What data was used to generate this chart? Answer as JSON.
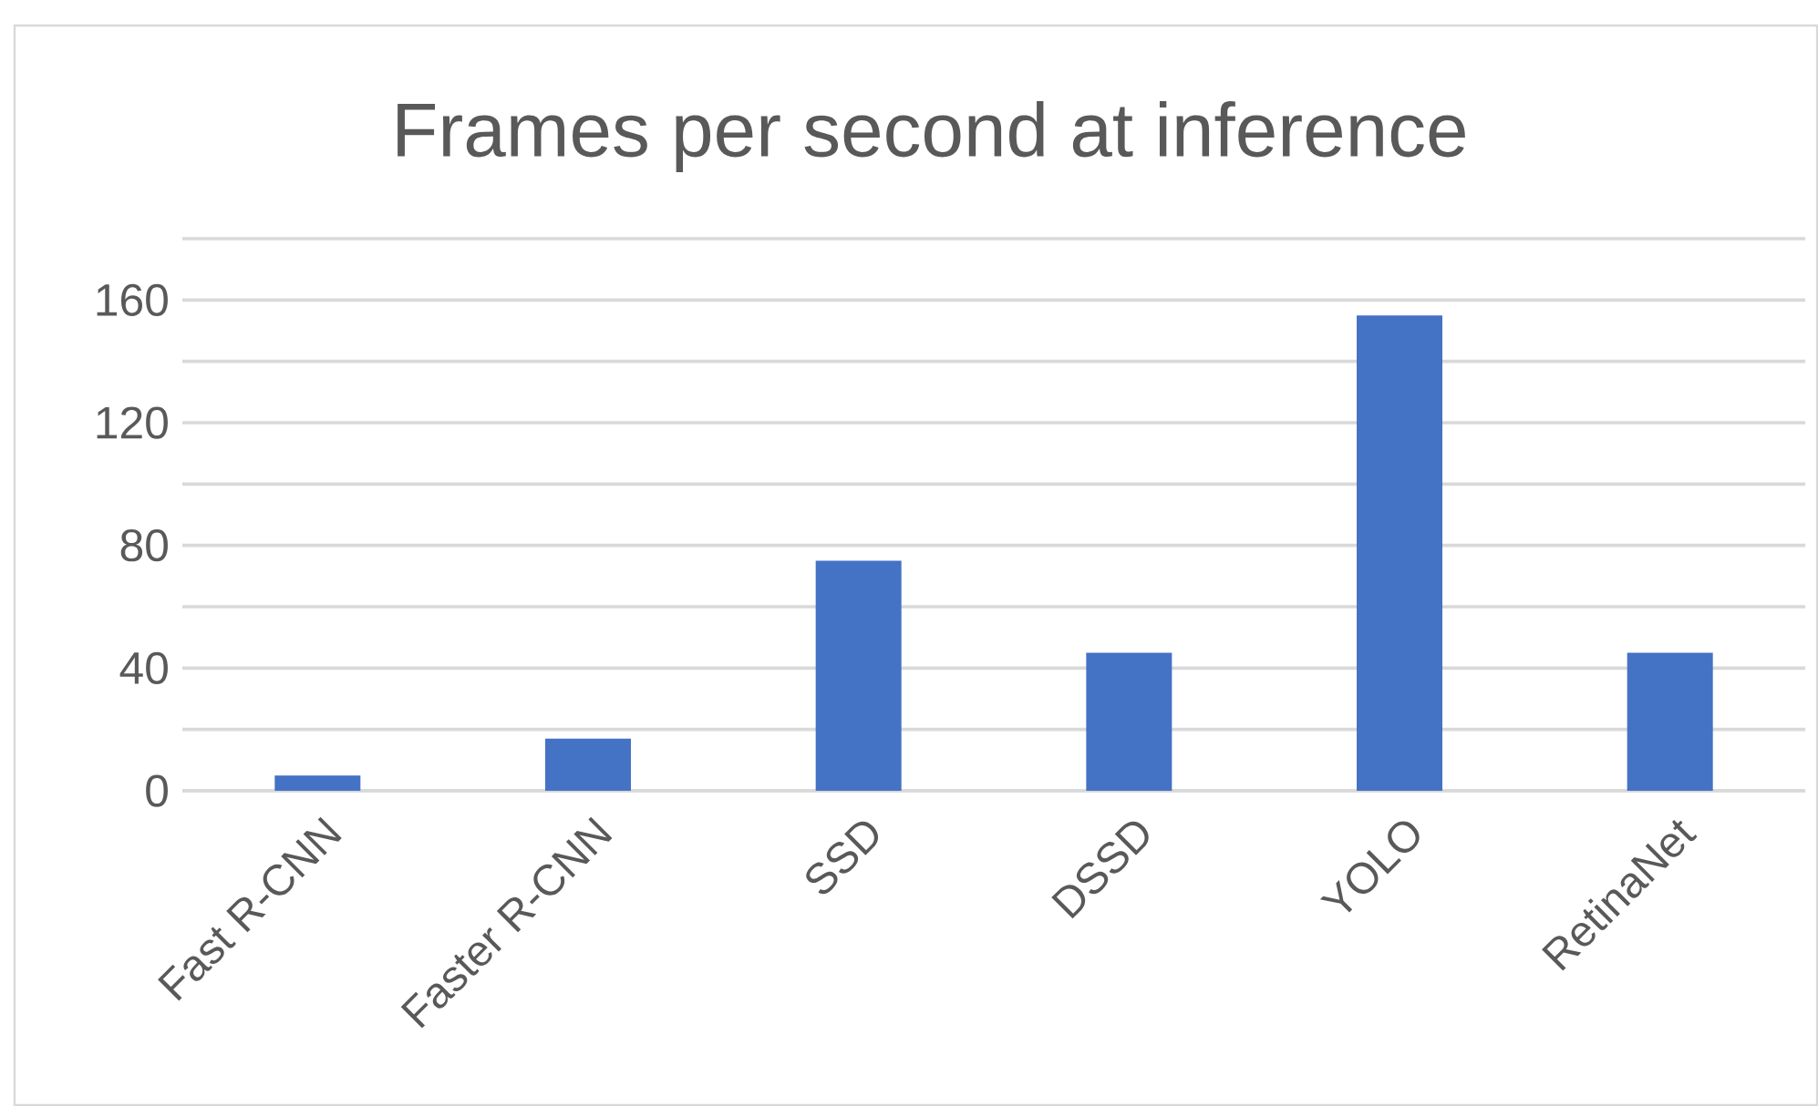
{
  "chart_data": {
    "type": "bar",
    "title": "Frames per second at inference",
    "categories": [
      "Fast R-CNN",
      "Faster R-CNN",
      "SSD",
      "DSSD",
      "YOLO",
      "RetinaNet"
    ],
    "values": [
      5,
      17,
      75,
      45,
      155,
      45
    ],
    "color": "#4472c4",
    "ylim": [
      0,
      180
    ],
    "yticks": [
      0,
      {
        "value": 20,
        "label": null
      },
      40,
      {
        "value": 60,
        "label": null
      },
      80,
      {
        "value": 100,
        "label": null
      },
      120,
      {
        "value": 140,
        "label": null
      },
      160,
      {
        "value": 180,
        "label": null
      }
    ],
    "grid": true
  }
}
